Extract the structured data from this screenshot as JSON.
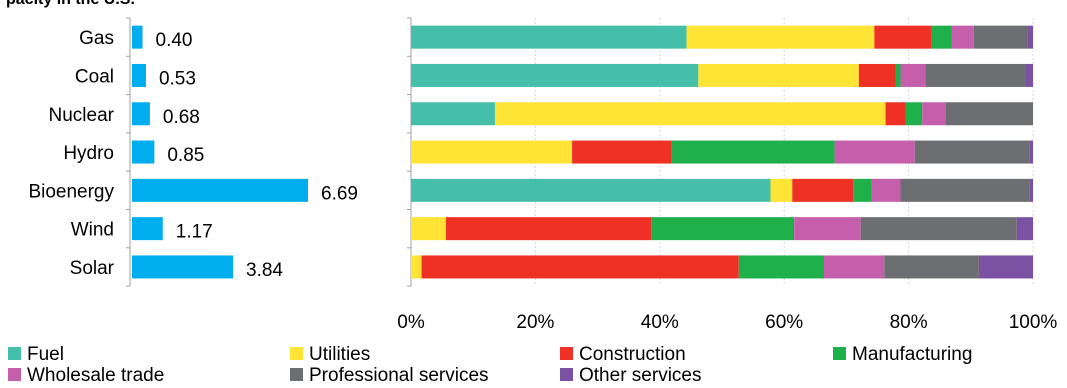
{
  "title_fragment": "pacity in the U.S.",
  "chart_data": [
    {
      "type": "bar",
      "orientation": "horizontal",
      "categories": [
        "Gas",
        "Coal",
        "Nuclear",
        "Hydro",
        "Bioenergy",
        "Wind",
        "Solar"
      ],
      "values": [
        0.4,
        0.53,
        0.68,
        0.85,
        6.69,
        1.17,
        3.84
      ],
      "value_labels": [
        "0.40",
        "0.53",
        "0.68",
        "0.85",
        "6.69",
        "1.17",
        "3.84"
      ],
      "color": "#00aeef",
      "grid": false
    },
    {
      "type": "bar",
      "orientation": "horizontal",
      "stacked": "percent",
      "categories": [
        "Gas",
        "Coal",
        "Nuclear",
        "Hydro",
        "Bioenergy",
        "Wind",
        "Solar"
      ],
      "xlim": [
        0,
        100
      ],
      "x_ticks": [
        "0%",
        "20%",
        "40%",
        "60%",
        "80%",
        "100%"
      ],
      "grid": true,
      "legend_position": "bottom",
      "series": [
        {
          "name": "Fuel",
          "color": "#45bfaa",
          "values": [
            44.3,
            46.2,
            13.5,
            0,
            57.8,
            0,
            0
          ]
        },
        {
          "name": "Utilities",
          "color": "#ffe335",
          "values": [
            30.2,
            25.8,
            62.8,
            25.9,
            3.5,
            5.6,
            1.7
          ]
        },
        {
          "name": "Construction",
          "color": "#ee3124",
          "values": [
            9.2,
            5.9,
            3.2,
            15.9,
            9.8,
            33.0,
            51.0
          ]
        },
        {
          "name": "Manufacturing",
          "color": "#1fb04c",
          "values": [
            3.2,
            0.8,
            2.7,
            26.3,
            3.0,
            23.0,
            13.7
          ]
        },
        {
          "name": "Wholesale trade",
          "color": "#c55fac",
          "values": [
            3.6,
            4.0,
            3.7,
            12.9,
            4.6,
            10.7,
            9.7
          ]
        },
        {
          "name": "Professional services",
          "color": "#6d6e71",
          "values": [
            8.6,
            16.1,
            14.1,
            18.5,
            20.7,
            25.1,
            15.2
          ]
        },
        {
          "name": "Other services",
          "color": "#7b52a3",
          "values": [
            0.9,
            1.2,
            0,
            0.5,
            0.6,
            2.6,
            8.7
          ]
        }
      ]
    }
  ]
}
